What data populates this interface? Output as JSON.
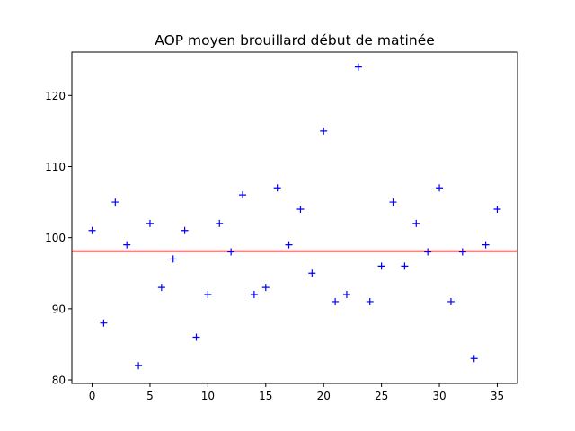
{
  "chart_data": {
    "type": "scatter",
    "title": "AOP moyen brouillard début de matinée",
    "xlabel": "",
    "ylabel": "",
    "xlim": [
      -1.75,
      36.75
    ],
    "ylim": [
      79.5,
      126.1
    ],
    "xticks": [
      0,
      5,
      10,
      15,
      20,
      25,
      30,
      35
    ],
    "yticks": [
      80,
      90,
      100,
      110,
      120
    ],
    "marker": "+",
    "marker_color": "#0000ff",
    "series": [
      {
        "x": [
          0,
          1,
          2,
          3,
          4,
          5,
          6,
          7,
          8,
          9,
          10,
          11,
          12,
          13,
          14,
          15,
          16,
          17,
          18,
          19,
          20,
          21,
          22,
          23,
          24,
          25,
          26,
          27,
          28,
          29,
          30,
          31,
          32,
          33,
          34,
          35
        ],
        "y": [
          101,
          88,
          105,
          99,
          82,
          102,
          93,
          97,
          101,
          86,
          92,
          102,
          98,
          106,
          92,
          93,
          107,
          99,
          104,
          95,
          115,
          91,
          92,
          124,
          91,
          96,
          105,
          96,
          102,
          98,
          107,
          91,
          98,
          83,
          99,
          104
        ]
      }
    ],
    "hlines": [
      {
        "y": 98.1,
        "color": "#ff0000"
      }
    ],
    "grid": false
  }
}
